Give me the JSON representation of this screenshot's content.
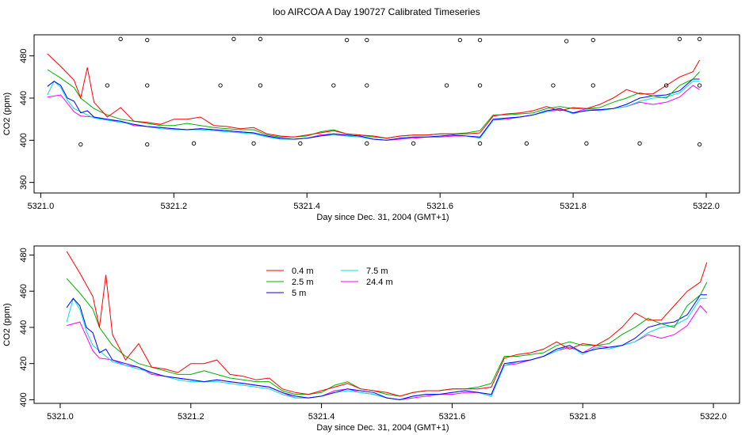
{
  "title": "loo AIRCOA A  Day 190727  Calibrated Timeseries",
  "colors": {
    "0.4 m": "#ff0000",
    "2.5 m": "#00b000",
    "5 m": "#0000ff",
    "7.5 m": "#00e0e0",
    "24.4 m": "#ff00ff"
  },
  "chart_data": [
    {
      "type": "line",
      "xlabel": "Day since Dec. 31, 2004 (GMT+1)",
      "ylabel": "CO2 (ppm)",
      "xlim": [
        5320.99,
        5322.05
      ],
      "ylim": [
        350,
        500
      ],
      "xticks": [
        5321.0,
        5321.2,
        5321.4,
        5321.6,
        5321.8,
        5322.0
      ],
      "xtick_labels": [
        "5321.0",
        "5321.2",
        "5321.4",
        "5321.6",
        "5321.8",
        "5322.0"
      ],
      "yticks": [
        360,
        400,
        440,
        480
      ],
      "ytick_labels": [
        "360",
        "400",
        "440",
        "480"
      ],
      "legend": false,
      "series": [
        {
          "name": "0.4 m",
          "x": [
            5321.01,
            5321.03,
            5321.05,
            5321.06,
            5321.07,
            5321.08,
            5321.1,
            5321.12,
            5321.14,
            5321.16,
            5321.18,
            5321.2,
            5321.22,
            5321.24,
            5321.26,
            5321.28,
            5321.3,
            5321.32,
            5321.34,
            5321.36,
            5321.38,
            5321.4,
            5321.42,
            5321.44,
            5321.46,
            5321.48,
            5321.5,
            5321.52,
            5321.54,
            5321.56,
            5321.58,
            5321.6,
            5321.62,
            5321.64,
            5321.66,
            5321.68,
            5321.7,
            5321.72,
            5321.74,
            5321.76,
            5321.78,
            5321.8,
            5321.82,
            5321.84,
            5321.86,
            5321.88,
            5321.9,
            5321.92,
            5321.94,
            5321.96,
            5321.98,
            5321.99
          ],
          "y": [
            482,
            470,
            457,
            440,
            469,
            436,
            422,
            431,
            418,
            417,
            415,
            420,
            420,
            422,
            414,
            413,
            411,
            412,
            406,
            404,
            403,
            405,
            407,
            409,
            406,
            405,
            404,
            402,
            404,
            405,
            405,
            406,
            406,
            406,
            407,
            423,
            425,
            426,
            428,
            432,
            428,
            431,
            430,
            434,
            440,
            448,
            444,
            444,
            452,
            460,
            465,
            476
          ]
        },
        {
          "name": "2.5 m",
          "x": [
            5321.01,
            5321.03,
            5321.05,
            5321.06,
            5321.08,
            5321.1,
            5321.12,
            5321.14,
            5321.16,
            5321.18,
            5321.2,
            5321.22,
            5321.24,
            5321.26,
            5321.28,
            5321.3,
            5321.32,
            5321.34,
            5321.36,
            5321.38,
            5321.4,
            5321.42,
            5321.44,
            5321.46,
            5321.48,
            5321.5,
            5321.52,
            5321.54,
            5321.56,
            5321.58,
            5321.6,
            5321.62,
            5321.64,
            5321.66,
            5321.68,
            5321.7,
            5321.72,
            5321.74,
            5321.76,
            5321.78,
            5321.8,
            5321.82,
            5321.84,
            5321.86,
            5321.88,
            5321.9,
            5321.92,
            5321.94,
            5321.96,
            5321.98,
            5321.99
          ],
          "y": [
            467,
            459,
            450,
            440,
            430,
            424,
            420,
            418,
            416,
            414,
            414,
            416,
            414,
            412,
            411,
            410,
            410,
            405,
            403,
            403,
            404,
            408,
            410,
            406,
            405,
            403,
            402,
            404,
            405,
            405,
            406,
            406,
            407,
            409,
            424,
            424,
            425,
            426,
            430,
            432,
            430,
            430,
            431,
            436,
            440,
            445,
            442,
            440,
            452,
            458,
            465
          ]
        },
        {
          "name": "5 m",
          "x": [
            5321.01,
            5321.02,
            5321.03,
            5321.04,
            5321.05,
            5321.06,
            5321.07,
            5321.08,
            5321.1,
            5321.12,
            5321.14,
            5321.16,
            5321.18,
            5321.2,
            5321.22,
            5321.24,
            5321.26,
            5321.28,
            5321.3,
            5321.32,
            5321.34,
            5321.36,
            5321.38,
            5321.4,
            5321.42,
            5321.44,
            5321.46,
            5321.48,
            5321.5,
            5321.52,
            5321.54,
            5321.56,
            5321.58,
            5321.6,
            5321.62,
            5321.64,
            5321.66,
            5321.68,
            5321.7,
            5321.72,
            5321.74,
            5321.76,
            5321.78,
            5321.8,
            5321.82,
            5321.84,
            5321.86,
            5321.88,
            5321.9,
            5321.92,
            5321.94,
            5321.96,
            5321.98,
            5321.99
          ],
          "y": [
            451,
            456,
            452,
            440,
            437,
            426,
            428,
            422,
            420,
            418,
            415,
            413,
            412,
            411,
            410,
            411,
            410,
            409,
            408,
            407,
            404,
            402,
            401,
            402,
            404,
            406,
            405,
            404,
            401,
            400,
            402,
            403,
            403,
            404,
            405,
            404,
            403,
            420,
            421,
            422,
            424,
            428,
            430,
            426,
            428,
            429,
            430,
            434,
            440,
            442,
            443,
            447,
            458,
            458
          ]
        },
        {
          "name": "7.5 m",
          "x": [
            5321.01,
            5321.02,
            5321.03,
            5321.04,
            5321.05,
            5321.06,
            5321.07,
            5321.08,
            5321.1,
            5321.12,
            5321.14,
            5321.16,
            5321.18,
            5321.2,
            5321.22,
            5321.24,
            5321.26,
            5321.28,
            5321.3,
            5321.32,
            5321.34,
            5321.36,
            5321.38,
            5321.4,
            5321.42,
            5321.44,
            5321.46,
            5321.48,
            5321.5,
            5321.52,
            5321.54,
            5321.56,
            5321.58,
            5321.6,
            5321.62,
            5321.64,
            5321.66,
            5321.68,
            5321.7,
            5321.72,
            5321.74,
            5321.76,
            5321.78,
            5321.8,
            5321.82,
            5321.84,
            5321.86,
            5321.88,
            5321.9,
            5321.92,
            5321.94,
            5321.96,
            5321.98,
            5321.99
          ],
          "y": [
            443,
            456,
            450,
            438,
            430,
            427,
            424,
            421,
            419,
            417,
            415,
            413,
            411,
            410,
            410,
            410,
            409,
            408,
            407,
            406,
            403,
            401,
            401,
            402,
            404,
            405,
            404,
            403,
            401,
            400,
            402,
            403,
            403,
            404,
            405,
            404,
            402,
            419,
            421,
            422,
            424,
            427,
            430,
            425,
            429,
            428,
            430,
            432,
            437,
            440,
            441,
            445,
            456,
            456
          ]
        },
        {
          "name": "24.4 m",
          "x": [
            5321.01,
            5321.03,
            5321.05,
            5321.06,
            5321.08,
            5321.1,
            5321.12,
            5321.14,
            5321.16,
            5321.18,
            5321.2,
            5321.22,
            5321.24,
            5321.26,
            5321.28,
            5321.3,
            5321.32,
            5321.34,
            5321.36,
            5321.38,
            5321.4,
            5321.42,
            5321.44,
            5321.46,
            5321.48,
            5321.5,
            5321.52,
            5321.54,
            5321.56,
            5321.58,
            5321.6,
            5321.62,
            5321.64,
            5321.66,
            5321.68,
            5321.7,
            5321.72,
            5321.74,
            5321.76,
            5321.78,
            5321.8,
            5321.82,
            5321.84,
            5321.86,
            5321.88,
            5321.9,
            5321.92,
            5321.94,
            5321.96,
            5321.98,
            5321.99
          ],
          "y": [
            441,
            443,
            427,
            423,
            422,
            419,
            418,
            414,
            413,
            412,
            411,
            410,
            411,
            410,
            409,
            408,
            407,
            404,
            401,
            401,
            402,
            405,
            406,
            404,
            403,
            401,
            400,
            401,
            402,
            403,
            403,
            404,
            404,
            402,
            419,
            420,
            422,
            424,
            427,
            429,
            426,
            430,
            429,
            430,
            432,
            436,
            434,
            436,
            441,
            452,
            448
          ]
        }
      ],
      "markers": {
        "x": [
          5321.06,
          5321.1,
          5321.12,
          5321.16,
          5321.16,
          5321.16,
          5321.23,
          5321.27,
          5321.29,
          5321.32,
          5321.33,
          5321.33,
          5321.39,
          5321.44,
          5321.46,
          5321.49,
          5321.49,
          5321.49,
          5321.56,
          5321.61,
          5321.63,
          5321.66,
          5321.66,
          5321.66,
          5321.73,
          5321.77,
          5321.79,
          5321.82,
          5321.83,
          5321.83,
          5321.9,
          5321.94,
          5321.96,
          5321.99,
          5321.99,
          5321.99
        ],
        "y": [
          396,
          452,
          496,
          396,
          452,
          495,
          397,
          452,
          496,
          397,
          452,
          496,
          397,
          452,
          495,
          397,
          452,
          495,
          397,
          452,
          495,
          397,
          452,
          495,
          397,
          452,
          494,
          397,
          452,
          495,
          397,
          452,
          496,
          396,
          452,
          496
        ]
      }
    },
    {
      "type": "line",
      "xlabel": "Day since Dec. 31, 2004 (GMT+1)",
      "ylabel": "CO2 (ppm)",
      "xlim": [
        5320.96,
        5322.04
      ],
      "ylim": [
        398,
        485
      ],
      "xticks": [
        5321.0,
        5321.2,
        5321.4,
        5321.6,
        5321.8,
        5322.0
      ],
      "xtick_labels": [
        "5321.0",
        "5321.2",
        "5321.4",
        "5321.6",
        "5321.8",
        "5322.0"
      ],
      "yticks": [
        400,
        420,
        440,
        460,
        480
      ],
      "ytick_labels": [
        "400",
        "420",
        "440",
        "460",
        "480"
      ],
      "legend": true,
      "legend_position": "top-left",
      "legend_entries": [
        "0.4 m",
        "2.5 m",
        "5 m",
        "7.5 m",
        "24.4 m"
      ],
      "series": "same as first panel"
    }
  ]
}
